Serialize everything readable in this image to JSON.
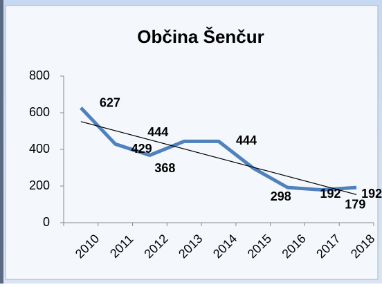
{
  "chart_data": {
    "type": "line",
    "title": "Občina Šenčur",
    "categories": [
      "2010",
      "2011",
      "2012",
      "2013",
      "2014",
      "2015",
      "2016",
      "2017",
      "2018"
    ],
    "values": [
      627,
      429,
      368,
      444,
      444,
      298,
      192,
      179,
      192
    ],
    "color": "#4f81bd",
    "trendline": true,
    "ylim": [
      0,
      800
    ],
    "yticks": [
      0,
      200,
      400,
      600,
      800
    ],
    "grid": false
  }
}
